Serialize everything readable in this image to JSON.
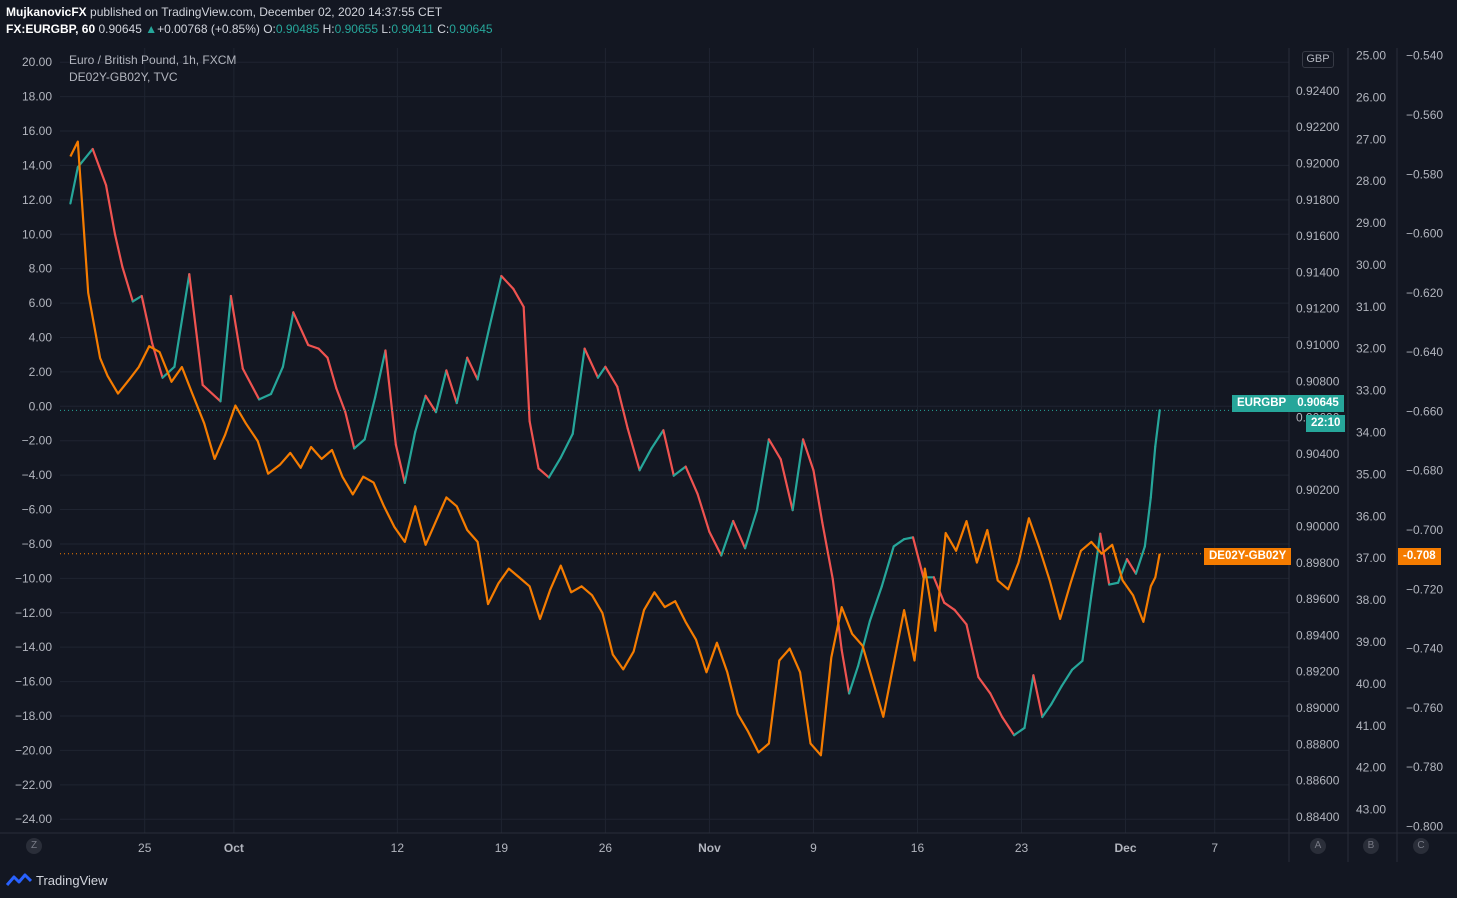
{
  "header": {
    "author": "MujkanovicFX",
    "published_text": "published on TradingView.com, December 02, 2020 14:37:55 CET",
    "symbol": "FX:EURGBP, 60",
    "last": "0.90645",
    "change": "+0.00768 (+0.85%)",
    "open_label": "O:",
    "open": "0.90485",
    "high_label": "H:",
    "high": "0.90655",
    "low_label": "L:",
    "low": "0.90411",
    "close_label": "C:",
    "close": "0.90645"
  },
  "legend": {
    "main": "Euro / British Pound, 1h, FXCM",
    "overlay": "DE02Y-GB02Y, TVC"
  },
  "colors": {
    "bg": "#131722",
    "grid": "#1f2431",
    "up": "#26a69a",
    "down": "#ef5350",
    "overlay": "#f57c00",
    "text": "#b2b5be"
  },
  "badges": {
    "eurgbp_name": "EURGBP",
    "eurgbp_price": "0.90645",
    "countdown": "22:10",
    "spread_name": "DE02Y-GB02Y",
    "spread_value": "-0.708"
  },
  "currency_label": "GBP",
  "scale_buttons": {
    "z": "Z",
    "a": "A",
    "b": "B",
    "c": "C"
  },
  "footer": {
    "brand": "TradingView"
  },
  "chart_data": {
    "type": "line",
    "title": "Euro / British Pound, 1h, FXCM",
    "x_tick_labels": [
      "25",
      "Oct",
      "12",
      "19",
      "26",
      "Nov",
      "9",
      "16",
      "23",
      "Dec",
      "7"
    ],
    "x_tick_days": [
      25,
      31,
      42,
      49,
      56,
      63,
      70,
      77,
      84,
      91,
      97
    ],
    "x_range_days": [
      19.3,
      102
    ],
    "left_axis": {
      "ylim": [
        -24.8,
        21.0
      ],
      "ticks": [
        "20.00",
        "18.00",
        "16.00",
        "14.00",
        "12.00",
        "10.00",
        "8.00",
        "6.00",
        "4.00",
        "2.00",
        "0.00",
        "−2.00",
        "−4.00",
        "−6.00",
        "−8.00",
        "−10.00",
        "−12.00",
        "−14.00",
        "−16.00",
        "−18.00",
        "−20.00",
        "−22.00",
        "−24.00"
      ]
    },
    "price_axis": {
      "ylim": [
        0.88311,
        0.92653
      ],
      "ticks": [
        "0.92400",
        "0.92200",
        "0.92000",
        "0.91800",
        "0.91600",
        "0.91400",
        "0.91200",
        "0.91000",
        "0.90800",
        "0.90600",
        "0.90400",
        "0.90200",
        "0.90000",
        "0.89800",
        "0.89600",
        "0.89400",
        "0.89200",
        "0.89000",
        "0.88800",
        "0.88600",
        "0.88400"
      ]
    },
    "inverted_axis": {
      "ylim": [
        24.75,
        43.56
      ],
      "ticks": [
        "25.00",
        "26.00",
        "27.00",
        "28.00",
        "29.00",
        "30.00",
        "31.00",
        "32.00",
        "33.00",
        "34.00",
        "35.00",
        "36.00",
        "37.00",
        "38.00",
        "39.00",
        "40.00",
        "41.00",
        "42.00",
        "43.00"
      ]
    },
    "spread_axis": {
      "ylim": [
        -0.8022,
        -0.5364
      ],
      "ticks": [
        "−0.540",
        "−0.560",
        "−0.580",
        "−0.600",
        "−0.620",
        "−0.640",
        "−0.660",
        "−0.680",
        "−0.700",
        "−0.720",
        "−0.740",
        "−0.760",
        "−0.780",
        "−0.800"
      ]
    },
    "series": [
      {
        "name": "EURGBP",
        "style": "candles (approximated as up/down segments)",
        "x_days": [
          20.0,
          20.5,
          21.5,
          22.4,
          23.0,
          23.5,
          24.2,
          24.8,
          25.5,
          26.2,
          27.0,
          28.0,
          28.9,
          30.1,
          30.8,
          31.6,
          32.7,
          33.5,
          34.3,
          35.0,
          36.0,
          36.7,
          37.3,
          37.9,
          38.5,
          39.1,
          39.8,
          40.5,
          41.2,
          41.9,
          42.5,
          43.2,
          43.9,
          44.6,
          45.3,
          46.0,
          46.7,
          47.4,
          48.2,
          49.0,
          49.8,
          50.5,
          50.9,
          51.5,
          52.2,
          53.0,
          53.8,
          54.6,
          55.5,
          56.0,
          56.8,
          57.5,
          58.3,
          59.1,
          59.9,
          60.6,
          61.4,
          62.2,
          63.0,
          63.8,
          64.6,
          65.4,
          66.2,
          67.0,
          67.8,
          68.6,
          69.3,
          70.0,
          70.6,
          71.3,
          71.9,
          72.4,
          73.0,
          73.8,
          74.6,
          75.4,
          76.1,
          76.7,
          77.4,
          78.1,
          78.8,
          79.5,
          80.3,
          81.1,
          81.9,
          82.7,
          83.5,
          84.2,
          84.8,
          85.4,
          86.0,
          86.7,
          87.4,
          88.1,
          88.7,
          89.3,
          89.9,
          90.5,
          91.1,
          91.7,
          92.3,
          92.7,
          93.0,
          93.3
        ],
        "values": [
          0.9178,
          0.9198,
          0.9208,
          0.9188,
          0.9161,
          0.9143,
          0.9124,
          0.9127,
          0.9101,
          0.9082,
          0.9088,
          0.9139,
          0.9078,
          0.9069,
          0.9127,
          0.9087,
          0.907,
          0.9073,
          0.9088,
          0.9118,
          0.91,
          0.9098,
          0.9093,
          0.9076,
          0.9063,
          0.9043,
          0.9048,
          0.9071,
          0.9097,
          0.9045,
          0.9024,
          0.9052,
          0.9072,
          0.9063,
          0.9086,
          0.9068,
          0.9093,
          0.9081,
          0.911,
          0.9138,
          0.9131,
          0.9121,
          0.9058,
          0.9032,
          0.9027,
          0.9038,
          0.9051,
          0.9098,
          0.9082,
          0.9088,
          0.9077,
          0.9054,
          0.9031,
          0.9043,
          0.9053,
          0.9028,
          0.9033,
          0.9018,
          0.8997,
          0.8984,
          0.9003,
          0.8988,
          0.9009,
          0.9048,
          0.9037,
          0.9009,
          0.9048,
          0.9031,
          0.9002,
          0.8971,
          0.8932,
          0.8908,
          0.8923,
          0.8948,
          0.8967,
          0.8989,
          0.8993,
          0.8994,
          0.8972,
          0.8972,
          0.8958,
          0.8954,
          0.8946,
          0.8917,
          0.8908,
          0.8895,
          0.8885,
          0.8889,
          0.8918,
          0.8895,
          0.8902,
          0.8912,
          0.8921,
          0.8926,
          0.8962,
          0.8996,
          0.8968,
          0.8969,
          0.8982,
          0.8974,
          0.8989,
          0.9016,
          0.9044,
          0.9064
        ]
      },
      {
        "name": "DE02Y-GB02Y",
        "x_days": [
          20.0,
          20.5,
          21.2,
          22.0,
          22.5,
          23.2,
          24.0,
          24.6,
          25.3,
          26.0,
          26.8,
          27.5,
          28.2,
          29.0,
          29.7,
          30.4,
          31.1,
          31.8,
          32.6,
          33.3,
          34.1,
          34.8,
          35.5,
          36.2,
          36.9,
          37.6,
          38.3,
          39.0,
          39.7,
          40.4,
          41.1,
          41.8,
          42.5,
          43.2,
          43.9,
          44.6,
          45.3,
          46.0,
          46.7,
          47.4,
          48.1,
          48.8,
          49.5,
          50.2,
          50.9,
          51.6,
          52.3,
          53.0,
          53.7,
          54.4,
          55.1,
          55.8,
          56.5,
          57.2,
          57.9,
          58.6,
          59.3,
          60.0,
          60.7,
          61.4,
          62.1,
          62.8,
          63.5,
          64.2,
          64.9,
          65.6,
          66.3,
          67.0,
          67.7,
          68.4,
          69.1,
          69.8,
          70.5,
          71.2,
          71.9,
          72.6,
          73.3,
          74.0,
          74.7,
          75.4,
          76.1,
          76.8,
          77.5,
          78.2,
          78.9,
          79.6,
          80.3,
          81.0,
          81.7,
          82.4,
          83.1,
          83.8,
          84.5,
          85.2,
          85.9,
          86.6,
          87.3,
          88.0,
          88.7,
          89.4,
          90.1,
          90.8,
          91.5,
          92.2,
          92.7,
          93.0,
          93.3
        ],
        "values": [
          -0.574,
          -0.569,
          -0.62,
          -0.642,
          -0.648,
          -0.654,
          -0.649,
          -0.645,
          -0.638,
          -0.64,
          -0.65,
          -0.645,
          -0.654,
          -0.664,
          -0.676,
          -0.668,
          -0.658,
          -0.664,
          -0.67,
          -0.681,
          -0.678,
          -0.674,
          -0.679,
          -0.672,
          -0.676,
          -0.673,
          -0.682,
          -0.688,
          -0.682,
          -0.684,
          -0.692,
          -0.699,
          -0.704,
          -0.692,
          -0.705,
          -0.697,
          -0.689,
          -0.692,
          -0.7,
          -0.704,
          -0.725,
          -0.718,
          -0.713,
          -0.716,
          -0.719,
          -0.73,
          -0.72,
          -0.712,
          -0.721,
          -0.719,
          -0.722,
          -0.728,
          -0.742,
          -0.747,
          -0.741,
          -0.727,
          -0.721,
          -0.726,
          -0.724,
          -0.731,
          -0.737,
          -0.748,
          -0.738,
          -0.748,
          -0.762,
          -0.768,
          -0.775,
          -0.772,
          -0.744,
          -0.74,
          -0.748,
          -0.772,
          -0.776,
          -0.743,
          -0.726,
          -0.735,
          -0.739,
          -0.751,
          -0.763,
          -0.745,
          -0.727,
          -0.744,
          -0.713,
          -0.734,
          -0.701,
          -0.707,
          -0.697,
          -0.711,
          -0.7,
          -0.717,
          -0.72,
          -0.711,
          -0.696,
          -0.706,
          -0.717,
          -0.73,
          -0.718,
          -0.707,
          -0.704,
          -0.708,
          -0.705,
          -0.717,
          -0.722,
          -0.731,
          -0.719,
          -0.716,
          -0.708
        ]
      }
    ]
  }
}
